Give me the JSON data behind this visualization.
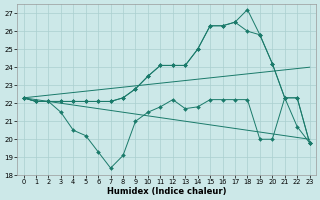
{
  "xlabel": "Humidex (Indice chaleur)",
  "bg_color": "#cce8e8",
  "grid_color": "#aacfcf",
  "line_color": "#1a7a6a",
  "xlim": [
    -0.5,
    23.5
  ],
  "ylim": [
    18,
    27.5
  ],
  "yticks": [
    18,
    19,
    20,
    21,
    22,
    23,
    24,
    25,
    26,
    27
  ],
  "xticks": [
    0,
    1,
    2,
    3,
    4,
    5,
    6,
    7,
    8,
    9,
    10,
    11,
    12,
    13,
    14,
    15,
    16,
    17,
    18,
    19,
    20,
    21,
    22,
    23
  ],
  "series": [
    {
      "x": [
        0,
        1,
        2,
        3,
        4,
        5,
        6,
        7,
        8,
        9,
        10,
        11,
        12,
        13,
        14,
        15,
        16,
        17,
        18,
        19,
        20,
        21,
        22,
        23
      ],
      "y": [
        22.3,
        22.1,
        22.1,
        21.5,
        20.5,
        20.2,
        19.3,
        18.4,
        19.1,
        21.0,
        21.5,
        21.8,
        22.2,
        21.7,
        21.8,
        22.2,
        22.2,
        22.2,
        22.2,
        20.0,
        20.0,
        22.3,
        20.7,
        19.8
      ]
    },
    {
      "x": [
        0,
        1,
        2,
        3,
        4,
        5,
        6,
        7,
        8,
        9,
        10,
        11,
        12,
        13,
        14,
        15,
        16,
        17,
        18,
        19,
        20,
        21,
        22,
        23
      ],
      "y": [
        22.3,
        22.1,
        22.1,
        22.1,
        22.1,
        22.1,
        22.1,
        22.1,
        22.3,
        22.8,
        23.5,
        24.1,
        24.1,
        24.1,
        25.0,
        26.3,
        26.3,
        26.5,
        27.2,
        25.8,
        24.2,
        22.3,
        22.3,
        19.8
      ]
    },
    {
      "x": [
        0,
        1,
        2,
        3,
        4,
        5,
        6,
        7,
        8,
        9,
        10,
        11,
        12,
        13,
        14,
        15,
        16,
        17,
        18,
        19,
        20,
        21,
        22,
        23
      ],
      "y": [
        22.3,
        22.1,
        22.1,
        22.1,
        22.1,
        22.1,
        22.1,
        22.1,
        22.3,
        22.8,
        23.5,
        24.1,
        24.1,
        24.1,
        25.0,
        26.3,
        26.3,
        26.5,
        26.0,
        25.8,
        24.2,
        22.3,
        22.3,
        19.8
      ]
    },
    {
      "x": [
        0,
        23
      ],
      "y": [
        22.3,
        24.0
      ]
    },
    {
      "x": [
        0,
        23
      ],
      "y": [
        22.3,
        20.0
      ]
    }
  ]
}
